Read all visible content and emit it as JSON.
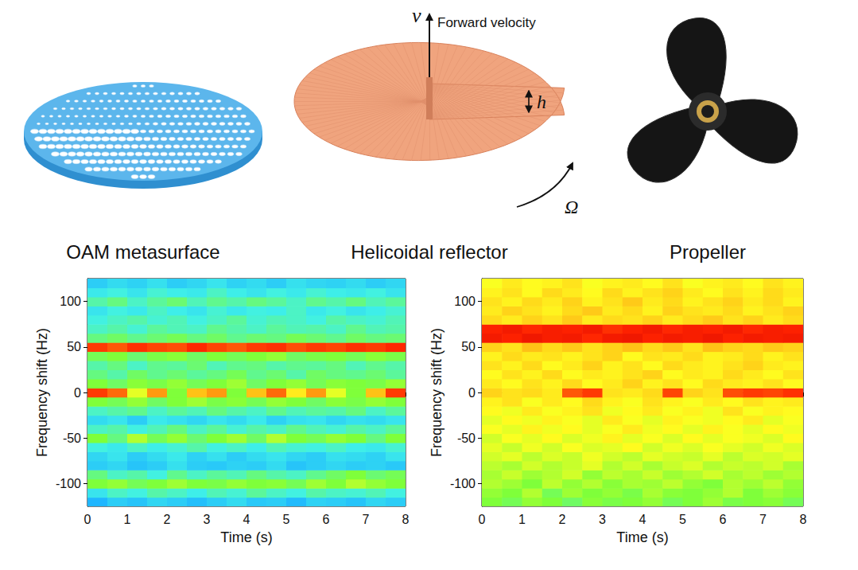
{
  "illustrations": [
    {
      "label": "OAM metasurface"
    },
    {
      "label": "Helicoidal reflector",
      "velocity_symbol": "v",
      "velocity_label": "Forward velocity",
      "pitch_symbol": "h",
      "rotation_symbol": "Ω"
    },
    {
      "label": "Propeller"
    }
  ],
  "chart_data": [
    {
      "type": "heatmap",
      "x_label": "Time (s)",
      "y_label": "Frequency shift (Hz)",
      "xlim": [
        0,
        8
      ],
      "xticks": [
        0,
        1,
        2,
        3,
        4,
        5,
        6,
        7,
        8
      ],
      "ylim": [
        -125,
        125
      ],
      "yticks": [
        -100,
        -50,
        0,
        50,
        100
      ],
      "zlim": [
        0,
        1
      ],
      "x_bins": [
        0,
        0.5,
        1,
        1.5,
        2,
        2.5,
        3,
        3.5,
        4,
        4.5,
        5,
        5.5,
        6,
        6.5,
        7,
        7.5,
        8
      ],
      "y_bins": [
        -125,
        -115,
        -105,
        -95,
        -85,
        -75,
        -65,
        -55,
        -45,
        -35,
        -25,
        -15,
        -5,
        5,
        15,
        25,
        35,
        45,
        55,
        65,
        75,
        85,
        95,
        105,
        115,
        125
      ],
      "z": [
        [
          0.25,
          0.3,
          0.28,
          0.32,
          0.3,
          0.27,
          0.3,
          0.33,
          0.29,
          0.3,
          0.26,
          0.31,
          0.3,
          0.28,
          0.32,
          0.3
        ],
        [
          0.35,
          0.4,
          0.38,
          0.42,
          0.4,
          0.37,
          0.41,
          0.39,
          0.43,
          0.4,
          0.38,
          0.42,
          0.4,
          0.39,
          0.41,
          0.38
        ],
        [
          0.5,
          0.52,
          0.48,
          0.5,
          0.53,
          0.5,
          0.49,
          0.52,
          0.5,
          0.51,
          0.48,
          0.53,
          0.5,
          0.55,
          0.52,
          0.5
        ],
        [
          0.45,
          0.4,
          0.42,
          0.38,
          0.44,
          0.4,
          0.43,
          0.41,
          0.45,
          0.42,
          0.4,
          0.44,
          0.47,
          0.5,
          0.46,
          0.48
        ],
        [
          0.3,
          0.32,
          0.28,
          0.3,
          0.34,
          0.3,
          0.29,
          0.31,
          0.3,
          0.33,
          0.28,
          0.3,
          0.32,
          0.3,
          0.31,
          0.29
        ],
        [
          0.32,
          0.35,
          0.3,
          0.33,
          0.36,
          0.31,
          0.34,
          0.3,
          0.33,
          0.35,
          0.32,
          0.3,
          0.34,
          0.33,
          0.31,
          0.35
        ],
        [
          0.38,
          0.36,
          0.4,
          0.37,
          0.39,
          0.42,
          0.38,
          0.4,
          0.37,
          0.41,
          0.39,
          0.38,
          0.4,
          0.37,
          0.36,
          0.39
        ],
        [
          0.5,
          0.45,
          0.55,
          0.48,
          0.52,
          0.46,
          0.5,
          0.53,
          0.47,
          0.55,
          0.5,
          0.48,
          0.52,
          0.5,
          0.45,
          0.5
        ],
        [
          0.4,
          0.42,
          0.38,
          0.41,
          0.45,
          0.4,
          0.43,
          0.39,
          0.42,
          0.4,
          0.44,
          0.41,
          0.39,
          0.42,
          0.4,
          0.43
        ],
        [
          0.33,
          0.35,
          0.3,
          0.36,
          0.34,
          0.32,
          0.35,
          0.33,
          0.36,
          0.31,
          0.34,
          0.35,
          0.32,
          0.34,
          0.33,
          0.35
        ],
        [
          0.4,
          0.42,
          0.44,
          0.4,
          0.43,
          0.41,
          0.45,
          0.42,
          0.4,
          0.44,
          0.41,
          0.43,
          0.42,
          0.45,
          0.4,
          0.43
        ],
        [
          0.5,
          0.48,
          0.52,
          0.47,
          0.5,
          0.53,
          0.49,
          0.51,
          0.48,
          0.52,
          0.5,
          0.47,
          0.51,
          0.49,
          0.52,
          0.5
        ],
        [
          0.85,
          0.8,
          0.6,
          0.75,
          0.5,
          0.7,
          0.75,
          0.5,
          0.7,
          0.8,
          0.65,
          0.75,
          0.6,
          0.5,
          0.7,
          0.85
        ],
        [
          0.5,
          0.47,
          0.51,
          0.49,
          0.52,
          0.48,
          0.5,
          0.53,
          0.47,
          0.5,
          0.52,
          0.48,
          0.51,
          0.5,
          0.49,
          0.52
        ],
        [
          0.45,
          0.42,
          0.47,
          0.44,
          0.46,
          0.43,
          0.45,
          0.48,
          0.44,
          0.46,
          0.42,
          0.47,
          0.45,
          0.44,
          0.46,
          0.43
        ],
        [
          0.42,
          0.45,
          0.4,
          0.44,
          0.43,
          0.46,
          0.41,
          0.44,
          0.45,
          0.42,
          0.44,
          0.43,
          0.45,
          0.41,
          0.44,
          0.42
        ],
        [
          0.48,
          0.5,
          0.46,
          0.49,
          0.51,
          0.47,
          0.5,
          0.48,
          0.5,
          0.52,
          0.47,
          0.49,
          0.5,
          0.48,
          0.51,
          0.49
        ],
        [
          0.85,
          0.82,
          0.86,
          0.84,
          0.83,
          0.87,
          0.84,
          0.82,
          0.85,
          0.86,
          0.83,
          0.85,
          0.84,
          0.86,
          0.85,
          0.87
        ],
        [
          0.45,
          0.47,
          0.44,
          0.46,
          0.48,
          0.45,
          0.47,
          0.44,
          0.46,
          0.45,
          0.48,
          0.46,
          0.44,
          0.47,
          0.45,
          0.46
        ],
        [
          0.4,
          0.42,
          0.39,
          0.43,
          0.41,
          0.4,
          0.44,
          0.42,
          0.4,
          0.43,
          0.41,
          0.42,
          0.4,
          0.44,
          0.41,
          0.42
        ],
        [
          0.38,
          0.4,
          0.42,
          0.39,
          0.41,
          0.38,
          0.4,
          0.43,
          0.39,
          0.41,
          0.4,
          0.38,
          0.42,
          0.4,
          0.39,
          0.41
        ],
        [
          0.35,
          0.38,
          0.36,
          0.4,
          0.37,
          0.35,
          0.39,
          0.36,
          0.38,
          0.37,
          0.4,
          0.36,
          0.38,
          0.35,
          0.37,
          0.39
        ],
        [
          0.42,
          0.45,
          0.4,
          0.43,
          0.46,
          0.41,
          0.44,
          0.42,
          0.45,
          0.43,
          0.4,
          0.44,
          0.42,
          0.45,
          0.41,
          0.43
        ],
        [
          0.36,
          0.38,
          0.35,
          0.39,
          0.37,
          0.36,
          0.4,
          0.37,
          0.35,
          0.38,
          0.36,
          0.39,
          0.37,
          0.36,
          0.38,
          0.35
        ],
        [
          0.3,
          0.33,
          0.31,
          0.34,
          0.3,
          0.32,
          0.35,
          0.31,
          0.33,
          0.3,
          0.34,
          0.32,
          0.31,
          0.33,
          0.3,
          0.32
        ]
      ]
    },
    {
      "type": "heatmap",
      "x_label": "Time (s)",
      "y_label": "Frequency shift (Hz)",
      "xlim": [
        0,
        8
      ],
      "xticks": [
        0,
        1,
        2,
        3,
        4,
        5,
        6,
        7,
        8
      ],
      "ylim": [
        -125,
        125
      ],
      "yticks": [
        -100,
        -50,
        0,
        50,
        100
      ],
      "zlim": [
        0,
        1
      ],
      "x_bins": [
        0,
        0.5,
        1,
        1.5,
        2,
        2.5,
        3,
        3.5,
        4,
        4.5,
        5,
        5.5,
        6,
        6.5,
        7,
        7.5,
        8
      ],
      "y_bins": [
        -125,
        -115,
        -105,
        -95,
        -85,
        -75,
        -65,
        -55,
        -45,
        -35,
        -25,
        -15,
        -5,
        5,
        15,
        25,
        35,
        45,
        55,
        65,
        75,
        85,
        95,
        105,
        115,
        125
      ],
      "z": [
        [
          0.5,
          0.48,
          0.52,
          0.5,
          0.47,
          0.51,
          0.49,
          0.5,
          0.52,
          0.48,
          0.5,
          0.53,
          0.49,
          0.5,
          0.51,
          0.48
        ],
        [
          0.52,
          0.5,
          0.55,
          0.48,
          0.53,
          0.5,
          0.52,
          0.49,
          0.54,
          0.51,
          0.5,
          0.52,
          0.55,
          0.5,
          0.53,
          0.51
        ],
        [
          0.55,
          0.53,
          0.5,
          0.56,
          0.52,
          0.55,
          0.51,
          0.54,
          0.53,
          0.56,
          0.52,
          0.5,
          0.55,
          0.53,
          0.56,
          0.52
        ],
        [
          0.54,
          0.57,
          0.53,
          0.55,
          0.58,
          0.52,
          0.56,
          0.54,
          0.57,
          0.53,
          0.55,
          0.58,
          0.54,
          0.56,
          0.53,
          0.55
        ],
        [
          0.56,
          0.54,
          0.58,
          0.55,
          0.57,
          0.6,
          0.55,
          0.58,
          0.54,
          0.57,
          0.59,
          0.55,
          0.57,
          0.56,
          0.58,
          0.54
        ],
        [
          0.58,
          0.6,
          0.56,
          0.59,
          0.57,
          0.61,
          0.58,
          0.56,
          0.6,
          0.58,
          0.57,
          0.6,
          0.56,
          0.59,
          0.58,
          0.6
        ],
        [
          0.6,
          0.57,
          0.61,
          0.58,
          0.62,
          0.59,
          0.6,
          0.63,
          0.58,
          0.61,
          0.59,
          0.62,
          0.6,
          0.58,
          0.61,
          0.59
        ],
        [
          0.58,
          0.62,
          0.6,
          0.63,
          0.59,
          0.61,
          0.64,
          0.6,
          0.62,
          0.59,
          0.63,
          0.6,
          0.62,
          0.61,
          0.59,
          0.63
        ],
        [
          0.62,
          0.6,
          0.64,
          0.61,
          0.63,
          0.6,
          0.62,
          0.65,
          0.61,
          0.63,
          0.6,
          0.64,
          0.62,
          0.6,
          0.63,
          0.61
        ],
        [
          0.6,
          0.63,
          0.61,
          0.64,
          0.62,
          0.6,
          0.65,
          0.62,
          0.6,
          0.64,
          0.62,
          0.61,
          0.63,
          0.65,
          0.6,
          0.62
        ],
        [
          0.63,
          0.61,
          0.65,
          0.62,
          0.64,
          0.66,
          0.61,
          0.63,
          0.65,
          0.62,
          0.64,
          0.61,
          0.66,
          0.62,
          0.64,
          0.63
        ],
        [
          0.64,
          0.66,
          0.62,
          0.65,
          0.63,
          0.67,
          0.64,
          0.62,
          0.66,
          0.64,
          0.62,
          0.65,
          0.63,
          0.66,
          0.64,
          0.65
        ],
        [
          0.68,
          0.66,
          0.67,
          0.65,
          0.82,
          0.85,
          0.66,
          0.65,
          0.67,
          0.84,
          0.68,
          0.66,
          0.83,
          0.85,
          0.84,
          0.86
        ],
        [
          0.65,
          0.63,
          0.66,
          0.64,
          0.67,
          0.63,
          0.65,
          0.68,
          0.64,
          0.66,
          0.63,
          0.67,
          0.65,
          0.64,
          0.66,
          0.63
        ],
        [
          0.63,
          0.66,
          0.64,
          0.67,
          0.63,
          0.65,
          0.64,
          0.66,
          0.68,
          0.63,
          0.65,
          0.64,
          0.67,
          0.65,
          0.63,
          0.66
        ],
        [
          0.66,
          0.64,
          0.67,
          0.63,
          0.65,
          0.68,
          0.64,
          0.66,
          0.63,
          0.67,
          0.65,
          0.64,
          0.66,
          0.68,
          0.65,
          0.64
        ],
        [
          0.64,
          0.67,
          0.65,
          0.66,
          0.64,
          0.66,
          0.68,
          0.63,
          0.66,
          0.65,
          0.67,
          0.64,
          0.65,
          0.67,
          0.64,
          0.66
        ],
        [
          0.68,
          0.66,
          0.7,
          0.67,
          0.69,
          0.66,
          0.68,
          0.7,
          0.67,
          0.69,
          0.66,
          0.7,
          0.68,
          0.67,
          0.69,
          0.68
        ],
        [
          0.9,
          0.88,
          0.91,
          0.89,
          0.9,
          0.87,
          0.9,
          0.91,
          0.88,
          0.9,
          0.89,
          0.91,
          0.88,
          0.9,
          0.89,
          0.9
        ],
        [
          0.88,
          0.9,
          0.87,
          0.89,
          0.88,
          0.9,
          0.86,
          0.88,
          0.9,
          0.87,
          0.89,
          0.88,
          0.9,
          0.87,
          0.89,
          0.88
        ],
        [
          0.67,
          0.65,
          0.68,
          0.66,
          0.69,
          0.65,
          0.67,
          0.66,
          0.68,
          0.65,
          0.67,
          0.69,
          0.66,
          0.68,
          0.65,
          0.67
        ],
        [
          0.65,
          0.68,
          0.66,
          0.64,
          0.67,
          0.69,
          0.65,
          0.67,
          0.64,
          0.68,
          0.66,
          0.65,
          0.67,
          0.64,
          0.66,
          0.68
        ],
        [
          0.66,
          0.64,
          0.67,
          0.65,
          0.68,
          0.64,
          0.66,
          0.69,
          0.65,
          0.67,
          0.64,
          0.66,
          0.68,
          0.65,
          0.67,
          0.64
        ],
        [
          0.64,
          0.66,
          0.63,
          0.67,
          0.65,
          0.63,
          0.67,
          0.64,
          0.66,
          0.68,
          0.65,
          0.63,
          0.66,
          0.64,
          0.67,
          0.65
        ],
        [
          0.62,
          0.65,
          0.63,
          0.64,
          0.66,
          0.62,
          0.64,
          0.65,
          0.63,
          0.66,
          0.62,
          0.64,
          0.65,
          0.63,
          0.66,
          0.64
        ]
      ]
    }
  ]
}
